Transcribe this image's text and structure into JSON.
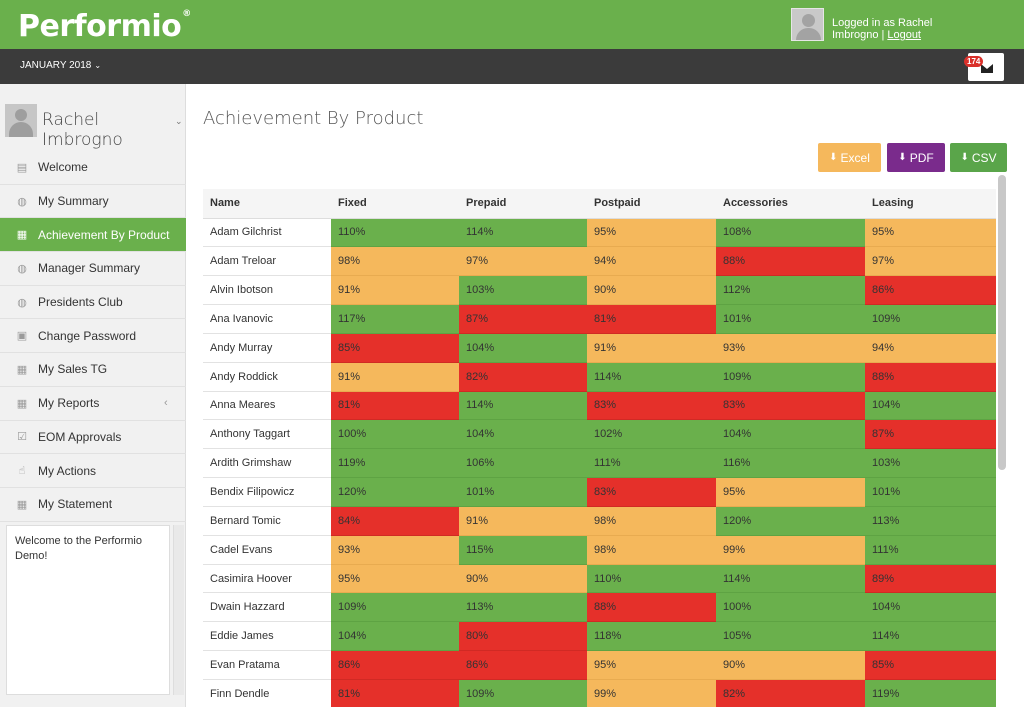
{
  "header": {
    "logo": "Performio",
    "logo_mark": "®",
    "logged_in_text": "Logged in as Rachel Imbrogno",
    "separator": "|",
    "logout": "Logout"
  },
  "period": {
    "label": "JANUARY 2018",
    "chevron": "⌄"
  },
  "notifications": {
    "count": "174"
  },
  "sidebar": {
    "user_name": "Rachel Imbrogno",
    "items": [
      {
        "label": "Welcome",
        "icon": "▤",
        "active": false
      },
      {
        "label": "My Summary",
        "icon": "◍",
        "active": false
      },
      {
        "label": "Achievement By Product",
        "icon": "▦",
        "active": true
      },
      {
        "label": "Manager Summary",
        "icon": "◍",
        "active": false
      },
      {
        "label": "Presidents Club",
        "icon": "◍",
        "active": false
      },
      {
        "label": "Change Password",
        "icon": "▣",
        "active": false
      },
      {
        "label": "My Sales TG",
        "icon": "▦",
        "active": false
      },
      {
        "label": "My Reports",
        "icon": "▦",
        "active": false,
        "submenu": "‹"
      },
      {
        "label": "EOM Approvals",
        "icon": "☑",
        "active": false
      },
      {
        "label": "My Actions",
        "icon": "☝",
        "active": false
      },
      {
        "label": "My Statement",
        "icon": "▦",
        "active": false
      }
    ],
    "welcome_text": "Welcome to the Performio Demo!"
  },
  "main": {
    "title": "Achievement By Product",
    "buttons": {
      "excel": "Excel",
      "pdf": "PDF",
      "csv": "CSV"
    },
    "columns": [
      "Name",
      "Fixed",
      "Prepaid",
      "Postpaid",
      "Accessories",
      "Leasing"
    ],
    "rows": [
      {
        "name": "Adam Gilchrist",
        "vals": [
          "110%",
          "114%",
          "95%",
          "108%",
          "95%"
        ],
        "status": [
          "g",
          "g",
          "y",
          "g",
          "y"
        ]
      },
      {
        "name": "Adam Treloar",
        "vals": [
          "98%",
          "97%",
          "94%",
          "88%",
          "97%"
        ],
        "status": [
          "y",
          "y",
          "y",
          "r",
          "y"
        ]
      },
      {
        "name": "Alvin Ibotson",
        "vals": [
          "91%",
          "103%",
          "90%",
          "112%",
          "86%"
        ],
        "status": [
          "y",
          "g",
          "y",
          "g",
          "r"
        ]
      },
      {
        "name": "Ana Ivanovic",
        "vals": [
          "117%",
          "87%",
          "81%",
          "101%",
          "109%"
        ],
        "status": [
          "g",
          "r",
          "r",
          "g",
          "g"
        ]
      },
      {
        "name": "Andy Murray",
        "vals": [
          "85%",
          "104%",
          "91%",
          "93%",
          "94%"
        ],
        "status": [
          "r",
          "g",
          "y",
          "y",
          "y"
        ]
      },
      {
        "name": "Andy Roddick",
        "vals": [
          "91%",
          "82%",
          "114%",
          "109%",
          "88%"
        ],
        "status": [
          "y",
          "r",
          "g",
          "g",
          "r"
        ]
      },
      {
        "name": "Anna Meares",
        "vals": [
          "81%",
          "114%",
          "83%",
          "83%",
          "104%"
        ],
        "status": [
          "r",
          "g",
          "r",
          "r",
          "g"
        ]
      },
      {
        "name": "Anthony Taggart",
        "vals": [
          "100%",
          "104%",
          "102%",
          "104%",
          "87%"
        ],
        "status": [
          "g",
          "g",
          "g",
          "g",
          "r"
        ]
      },
      {
        "name": "Ardith Grimshaw",
        "vals": [
          "119%",
          "106%",
          "111%",
          "116%",
          "103%"
        ],
        "status": [
          "g",
          "g",
          "g",
          "g",
          "g"
        ]
      },
      {
        "name": "Bendix Filipowicz",
        "vals": [
          "120%",
          "101%",
          "83%",
          "95%",
          "101%"
        ],
        "status": [
          "g",
          "g",
          "r",
          "y",
          "g"
        ]
      },
      {
        "name": "Bernard Tomic",
        "vals": [
          "84%",
          "91%",
          "98%",
          "120%",
          "113%"
        ],
        "status": [
          "r",
          "y",
          "y",
          "g",
          "g"
        ]
      },
      {
        "name": "Cadel Evans",
        "vals": [
          "93%",
          "115%",
          "98%",
          "99%",
          "111%"
        ],
        "status": [
          "y",
          "g",
          "y",
          "y",
          "g"
        ]
      },
      {
        "name": "Casimira Hoover",
        "vals": [
          "95%",
          "90%",
          "110%",
          "114%",
          "89%"
        ],
        "status": [
          "y",
          "y",
          "g",
          "g",
          "r"
        ]
      },
      {
        "name": "Dwain Hazzard",
        "vals": [
          "109%",
          "113%",
          "88%",
          "100%",
          "104%"
        ],
        "status": [
          "g",
          "g",
          "r",
          "g",
          "g"
        ]
      },
      {
        "name": "Eddie James",
        "vals": [
          "104%",
          "80%",
          "118%",
          "105%",
          "114%"
        ],
        "status": [
          "g",
          "r",
          "g",
          "g",
          "g"
        ]
      },
      {
        "name": "Evan Pratama",
        "vals": [
          "86%",
          "86%",
          "95%",
          "90%",
          "85%"
        ],
        "status": [
          "r",
          "r",
          "y",
          "y",
          "r"
        ]
      },
      {
        "name": "Finn Dendle",
        "vals": [
          "81%",
          "109%",
          "99%",
          "82%",
          "119%"
        ],
        "status": [
          "r",
          "g",
          "y",
          "r",
          "g"
        ]
      }
    ]
  },
  "colors": {
    "green": "#6ab04c",
    "amber": "#f5b85c",
    "red": "#e5302a",
    "purple": "#7a2b8c",
    "dark": "#3b3b3b"
  }
}
